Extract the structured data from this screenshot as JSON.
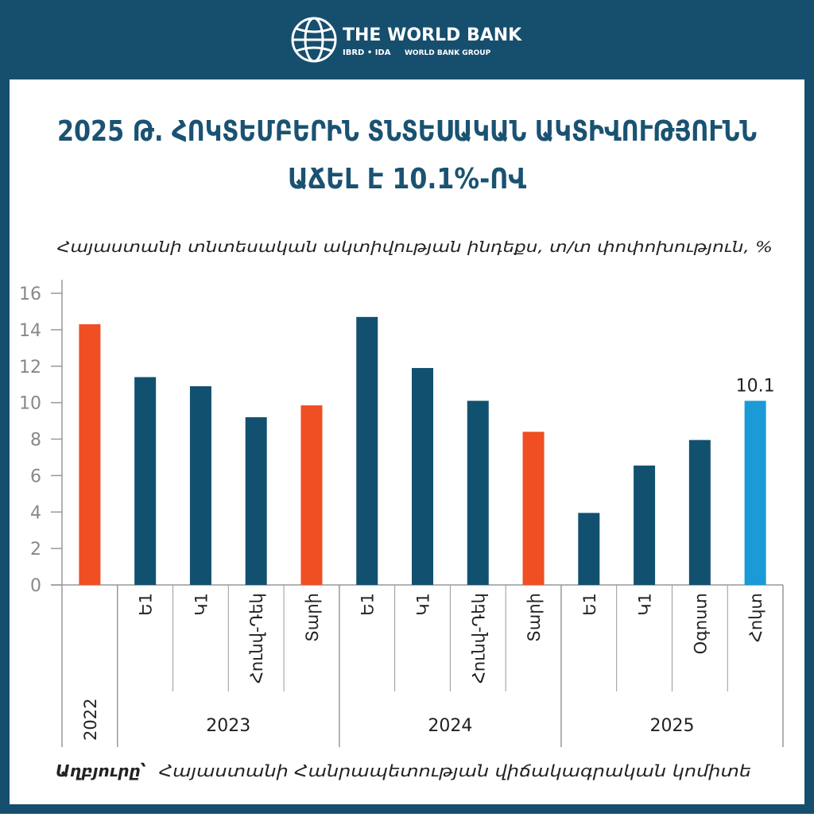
{
  "header": {
    "org": "THE WORLD BANK",
    "sub1": "IBRD • IDA",
    "sub2": "WORLD BANK GROUP"
  },
  "chart_data": {
    "type": "bar",
    "title": [
      "2025 Թ. ՀՈԿՏԵՄԲԵՐԻՆ ՏՆՏԵՍԱԿԱՆ ԱԿՏԻՎՈՒԹՅՈՒՆՆ",
      "ԱՃԵԼ Է 10.1%-ՈՎ"
    ],
    "subtitle": "Հայաստանի տնտեսական ակտիվության ինդեքս, տ/տ փոփոխություն, %",
    "categories": [
      "2022",
      "Ե1",
      "Կ1",
      "Հունվ-Դեկ",
      "Տարի",
      "Ե1",
      "Կ1",
      "Հունվ-Դեկ",
      "Տարի",
      "Ե1",
      "Կ1",
      "Օգոստ",
      "Հոկտ"
    ],
    "groups": [
      {
        "label": "2023",
        "from": 1,
        "to": 4
      },
      {
        "label": "2024",
        "from": 5,
        "to": 8
      },
      {
        "label": "2025",
        "from": 9,
        "to": 12
      }
    ],
    "values": [
      14.3,
      11.4,
      10.9,
      9.2,
      9.85,
      14.7,
      11.9,
      10.1,
      8.4,
      3.95,
      6.55,
      7.95,
      10.1
    ],
    "value_labels": [
      null,
      null,
      null,
      null,
      null,
      null,
      null,
      null,
      null,
      null,
      null,
      null,
      "10.1"
    ],
    "colors": [
      "#f04e23",
      "#12506f",
      "#12506f",
      "#12506f",
      "#f04e23",
      "#12506f",
      "#12506f",
      "#12506f",
      "#f04e23",
      "#12506f",
      "#12506f",
      "#12506f",
      "#1a9ad6"
    ],
    "ylim": [
      0,
      16
    ],
    "yticks": [
      0,
      2,
      4,
      6,
      8,
      10,
      12,
      14,
      16
    ],
    "grid": false,
    "source_label": "Աղբյուրը՝",
    "source": "Հայաստանի Հանրապետության վիճակագրական կոմիտե"
  }
}
